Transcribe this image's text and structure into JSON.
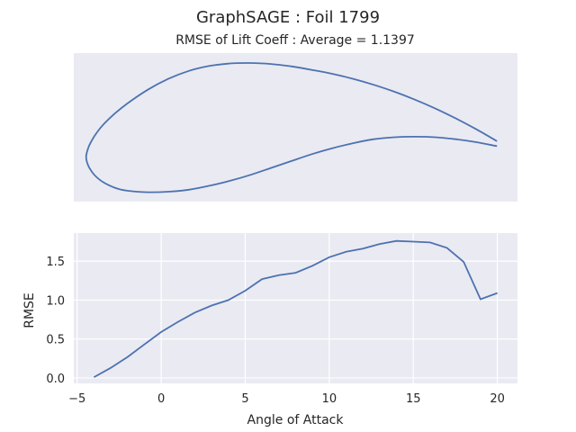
{
  "figure": {
    "suptitle": "GraphSAGE   :   Foil 1799",
    "title": "RMSE of Lift Coeff : Average = 1.1397"
  },
  "colors": {
    "line": "#4c72b0",
    "axes_bg": "#eaeaf2",
    "grid": "#ffffff",
    "text": "#262626"
  },
  "chart_data": [
    {
      "type": "line",
      "name": "airfoil-profile",
      "grid": false,
      "axes_visible": false,
      "upper_surface": {
        "x": [
          0.0,
          0.002,
          0.008,
          0.02,
          0.04,
          0.07,
          0.1,
          0.15,
          0.2,
          0.25,
          0.3,
          0.35,
          0.4,
          0.45,
          0.5,
          0.55,
          0.6,
          0.65,
          0.7,
          0.75,
          0.8,
          0.85,
          0.9,
          0.95,
          1.0
        ],
        "y": [
          0.0,
          0.05,
          0.12,
          0.21,
          0.32,
          0.44,
          0.54,
          0.68,
          0.79,
          0.87,
          0.92,
          0.945,
          0.95,
          0.94,
          0.915,
          0.88,
          0.84,
          0.79,
          0.73,
          0.66,
          0.58,
          0.49,
          0.39,
          0.28,
          0.16
        ]
      },
      "lower_surface": {
        "x": [
          0.0,
          0.002,
          0.008,
          0.02,
          0.04,
          0.07,
          0.1,
          0.15,
          0.2,
          0.25,
          0.3,
          0.35,
          0.4,
          0.45,
          0.5,
          0.55,
          0.6,
          0.65,
          0.7,
          0.75,
          0.8,
          0.85,
          0.9,
          0.95,
          1.0
        ],
        "y": [
          0.0,
          -0.05,
          -0.11,
          -0.18,
          -0.25,
          -0.31,
          -0.34,
          -0.355,
          -0.35,
          -0.33,
          -0.29,
          -0.24,
          -0.18,
          -0.11,
          -0.04,
          0.03,
          0.09,
          0.14,
          0.18,
          0.2,
          0.205,
          0.2,
          0.18,
          0.15,
          0.11
        ]
      },
      "xlim": [
        -0.03,
        1.05
      ],
      "ylim": [
        -0.45,
        1.05
      ]
    },
    {
      "type": "line",
      "xlabel": "Angle of Attack",
      "ylabel": "RMSE",
      "grid": true,
      "xlim": [
        -5.2,
        21.2
      ],
      "ylim": [
        -0.07,
        1.86
      ],
      "xticks": [
        "−5",
        "0",
        "5",
        "10",
        "15",
        "20"
      ],
      "xtick_values": [
        -5,
        0,
        5,
        10,
        15,
        20
      ],
      "yticks": [
        "0.0",
        "0.5",
        "1.0",
        "1.5"
      ],
      "ytick_values": [
        0.0,
        0.5,
        1.0,
        1.5
      ],
      "x": [
        -4,
        -3,
        -2,
        -1,
        0,
        1,
        2,
        3,
        4,
        5,
        6,
        7,
        8,
        9,
        10,
        11,
        12,
        13,
        14,
        15,
        16,
        17,
        18,
        19,
        20
      ],
      "y": [
        0.01,
        0.13,
        0.27,
        0.43,
        0.59,
        0.72,
        0.84,
        0.93,
        1.0,
        1.12,
        1.27,
        1.32,
        1.35,
        1.44,
        1.55,
        1.62,
        1.66,
        1.72,
        1.76,
        1.75,
        1.74,
        1.67,
        1.49,
        1.01,
        1.09
      ]
    }
  ]
}
